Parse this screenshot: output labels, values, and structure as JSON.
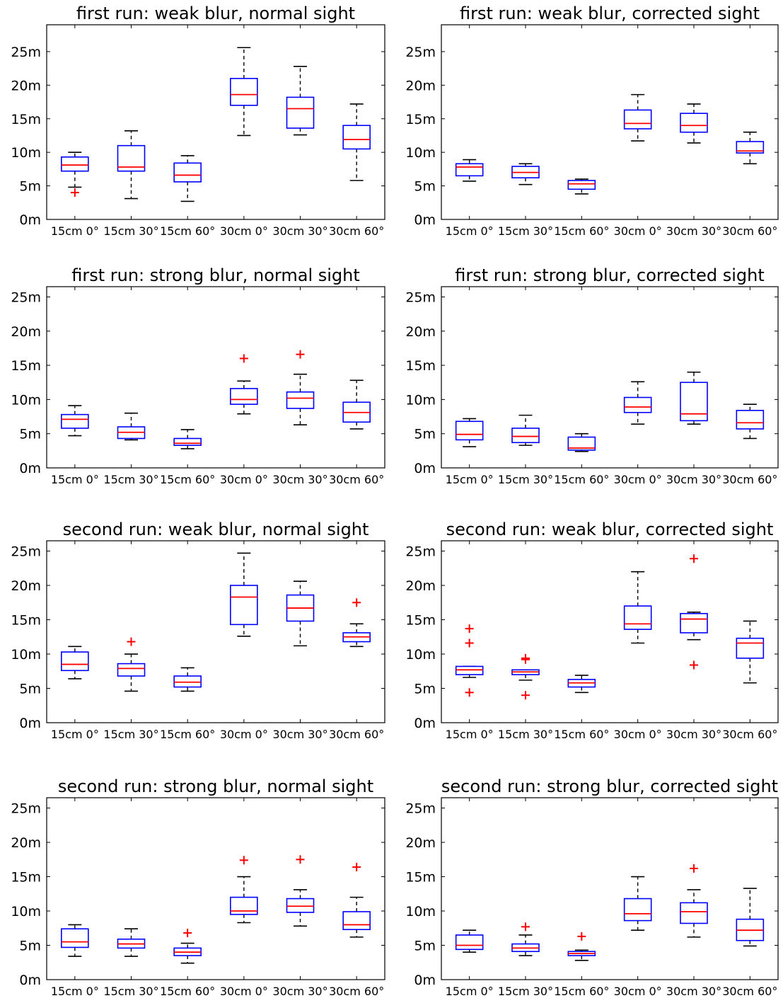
{
  "colors": {
    "box": "#0000ff",
    "median": "#ff0000",
    "outlier": "#ff0000",
    "whisker": "#000000",
    "axes": "#000000",
    "background": "#ffffff"
  },
  "chart_data": [
    {
      "type": "box",
      "title": "first run: weak blur, normal sight",
      "categories": [
        "15cm 0°",
        "15cm 30°",
        "15cm 60°",
        "30cm 0°",
        "30cm 30°",
        "30cm 60°"
      ],
      "ylim": [
        0,
        29
      ],
      "yticks": [
        0,
        5,
        10,
        15,
        20,
        25
      ],
      "ytick_labels": [
        "0m",
        "5m",
        "10m",
        "15m",
        "20m",
        "25m"
      ],
      "grid": false,
      "boxes": [
        {
          "whislo": 4.8,
          "q1": 7.2,
          "med": 8.1,
          "q3": 9.3,
          "whishi": 10.0,
          "fliers": [
            4.0
          ]
        },
        {
          "whislo": 3.1,
          "q1": 7.2,
          "med": 7.8,
          "q3": 11.0,
          "whishi": 13.2,
          "fliers": []
        },
        {
          "whislo": 2.7,
          "q1": 5.6,
          "med": 6.6,
          "q3": 8.4,
          "whishi": 9.5,
          "fliers": []
        },
        {
          "whislo": 12.5,
          "q1": 17.0,
          "med": 18.6,
          "q3": 21.0,
          "whishi": 25.6,
          "fliers": []
        },
        {
          "whislo": 12.6,
          "q1": 13.6,
          "med": 16.5,
          "q3": 18.2,
          "whishi": 22.8,
          "fliers": []
        },
        {
          "whislo": 5.8,
          "q1": 10.5,
          "med": 11.9,
          "q3": 14.0,
          "whishi": 17.2,
          "fliers": []
        }
      ]
    },
    {
      "type": "box",
      "title": "first run: weak blur, corrected sight",
      "categories": [
        "15cm 0°",
        "15cm 30°",
        "15cm 60°",
        "30cm 0°",
        "30cm 30°",
        "30cm 60°"
      ],
      "ylim": [
        0,
        29
      ],
      "yticks": [
        0,
        5,
        10,
        15,
        20,
        25
      ],
      "ytick_labels": [
        "0m",
        "5m",
        "10m",
        "15m",
        "20m",
        "25m"
      ],
      "grid": false,
      "boxes": [
        {
          "whislo": 5.7,
          "q1": 6.5,
          "med": 7.8,
          "q3": 8.3,
          "whishi": 8.9,
          "fliers": []
        },
        {
          "whislo": 5.2,
          "q1": 6.2,
          "med": 7.0,
          "q3": 7.9,
          "whishi": 8.3,
          "fliers": []
        },
        {
          "whislo": 3.8,
          "q1": 4.5,
          "med": 5.3,
          "q3": 5.8,
          "whishi": 6.0,
          "fliers": []
        },
        {
          "whislo": 11.7,
          "q1": 13.5,
          "med": 14.3,
          "q3": 16.3,
          "whishi": 18.6,
          "fliers": []
        },
        {
          "whislo": 11.4,
          "q1": 13.0,
          "med": 14.0,
          "q3": 15.8,
          "whishi": 17.2,
          "fliers": []
        },
        {
          "whislo": 8.3,
          "q1": 9.9,
          "med": 10.2,
          "q3": 11.6,
          "whishi": 13.0,
          "fliers": []
        }
      ]
    },
    {
      "type": "box",
      "title": "first run: strong blur, normal sight",
      "categories": [
        "15cm 0°",
        "15cm 30°",
        "15cm 60°",
        "30cm 0°",
        "30cm 30°",
        "30cm 60°"
      ],
      "ylim": [
        0,
        26.5
      ],
      "yticks": [
        0,
        5,
        10,
        15,
        20,
        25
      ],
      "ytick_labels": [
        "0m",
        "5m",
        "10m",
        "15m",
        "20m",
        "25m"
      ],
      "grid": false,
      "boxes": [
        {
          "whislo": 4.7,
          "q1": 5.8,
          "med": 7.1,
          "q3": 7.8,
          "whishi": 9.1,
          "fliers": []
        },
        {
          "whislo": 4.1,
          "q1": 4.3,
          "med": 5.2,
          "q3": 6.0,
          "whishi": 8.0,
          "fliers": []
        },
        {
          "whislo": 2.8,
          "q1": 3.3,
          "med": 3.6,
          "q3": 4.3,
          "whishi": 5.6,
          "fliers": []
        },
        {
          "whislo": 7.9,
          "q1": 9.3,
          "med": 10.0,
          "q3": 11.6,
          "whishi": 12.7,
          "fliers": [
            16.0
          ]
        },
        {
          "whislo": 6.3,
          "q1": 8.7,
          "med": 10.2,
          "q3": 11.1,
          "whishi": 13.7,
          "fliers": [
            16.6
          ]
        },
        {
          "whislo": 5.7,
          "q1": 6.7,
          "med": 8.1,
          "q3": 9.6,
          "whishi": 12.8,
          "fliers": []
        }
      ]
    },
    {
      "type": "box",
      "title": "first run: strong blur, corrected sight",
      "categories": [
        "15cm 0°",
        "15cm 30°",
        "15cm 60°",
        "30cm 0°",
        "30cm 30°",
        "30cm 60°"
      ],
      "ylim": [
        0,
        26.5
      ],
      "yticks": [
        0,
        5,
        10,
        15,
        20,
        25
      ],
      "ytick_labels": [
        "0m",
        "5m",
        "10m",
        "15m",
        "20m",
        "25m"
      ],
      "grid": false,
      "boxes": [
        {
          "whislo": 3.1,
          "q1": 4.1,
          "med": 4.9,
          "q3": 6.8,
          "whishi": 7.2,
          "fliers": []
        },
        {
          "whislo": 3.3,
          "q1": 3.7,
          "med": 4.6,
          "q3": 5.8,
          "whishi": 7.7,
          "fliers": []
        },
        {
          "whislo": 2.4,
          "q1": 2.6,
          "med": 2.9,
          "q3": 4.5,
          "whishi": 5.0,
          "fliers": []
        },
        {
          "whislo": 6.4,
          "q1": 8.1,
          "med": 8.9,
          "q3": 10.3,
          "whishi": 12.6,
          "fliers": []
        },
        {
          "whislo": 6.4,
          "q1": 6.9,
          "med": 7.9,
          "q3": 12.5,
          "whishi": 14.0,
          "fliers": []
        },
        {
          "whislo": 4.3,
          "q1": 5.7,
          "med": 6.6,
          "q3": 8.4,
          "whishi": 9.3,
          "fliers": []
        }
      ]
    },
    {
      "type": "box",
      "title": "second run: weak blur, normal sight",
      "categories": [
        "15cm 0°",
        "15cm 30°",
        "15cm 60°",
        "30cm 0°",
        "30cm 30°",
        "30cm 60°"
      ],
      "ylim": [
        0,
        26.5
      ],
      "yticks": [
        0,
        5,
        10,
        15,
        20,
        25
      ],
      "ytick_labels": [
        "0m",
        "5m",
        "10m",
        "15m",
        "20m",
        "25m"
      ],
      "grid": false,
      "boxes": [
        {
          "whislo": 6.4,
          "q1": 7.6,
          "med": 8.5,
          "q3": 10.3,
          "whishi": 11.1,
          "fliers": []
        },
        {
          "whislo": 4.6,
          "q1": 6.8,
          "med": 7.9,
          "q3": 8.6,
          "whishi": 10.0,
          "fliers": [
            11.8
          ]
        },
        {
          "whislo": 4.6,
          "q1": 5.2,
          "med": 5.9,
          "q3": 6.8,
          "whishi": 8.0,
          "fliers": []
        },
        {
          "whislo": 12.6,
          "q1": 14.3,
          "med": 18.3,
          "q3": 20.0,
          "whishi": 24.7,
          "fliers": []
        },
        {
          "whislo": 11.2,
          "q1": 14.8,
          "med": 16.7,
          "q3": 18.6,
          "whishi": 20.6,
          "fliers": []
        },
        {
          "whislo": 11.1,
          "q1": 11.8,
          "med": 12.5,
          "q3": 13.1,
          "whishi": 14.4,
          "fliers": [
            17.5
          ]
        }
      ]
    },
    {
      "type": "box",
      "title": "second run:  weak blur, corrected sight",
      "categories": [
        "15cm 0°",
        "15cm 30°",
        "15cm 60°",
        "30cm 0°",
        "30cm 30°",
        "30cm 60°"
      ],
      "ylim": [
        0,
        26.5
      ],
      "yticks": [
        0,
        5,
        10,
        15,
        20,
        25
      ],
      "ytick_labels": [
        "0m",
        "5m",
        "10m",
        "15m",
        "20m",
        "25m"
      ],
      "grid": false,
      "boxes": [
        {
          "whislo": 6.6,
          "q1": 7.0,
          "med": 7.7,
          "q3": 8.2,
          "whishi": 8.2,
          "fliers": [
            4.4,
            11.6,
            13.7
          ]
        },
        {
          "whislo": 6.2,
          "q1": 7.0,
          "med": 7.4,
          "q3": 7.7,
          "whishi": 7.7,
          "fliers": [
            4.0,
            9.2,
            9.4
          ]
        },
        {
          "whislo": 4.4,
          "q1": 5.2,
          "med": 5.8,
          "q3": 6.3,
          "whishi": 6.9,
          "fliers": []
        },
        {
          "whislo": 11.6,
          "q1": 13.6,
          "med": 14.4,
          "q3": 17.0,
          "whishi": 22.0,
          "fliers": []
        },
        {
          "whislo": 12.1,
          "q1": 13.1,
          "med": 15.1,
          "q3": 15.9,
          "whishi": 16.1,
          "fliers": [
            8.4,
            23.9
          ]
        },
        {
          "whislo": 5.8,
          "q1": 9.4,
          "med": 11.6,
          "q3": 12.3,
          "whishi": 14.8,
          "fliers": []
        }
      ]
    },
    {
      "type": "box",
      "title": "second run: strong blur, normal sight",
      "categories": [
        "15cm 0°",
        "15cm 30°",
        "15cm 60°",
        "30cm 0°",
        "30cm 30°",
        "30cm 60°"
      ],
      "ylim": [
        0,
        26.5
      ],
      "yticks": [
        0,
        5,
        10,
        15,
        20,
        25
      ],
      "ytick_labels": [
        "0m",
        "5m",
        "10m",
        "15m",
        "20m",
        "25m"
      ],
      "grid": false,
      "boxes": [
        {
          "whislo": 3.4,
          "q1": 4.7,
          "med": 5.5,
          "q3": 7.4,
          "whishi": 8.0,
          "fliers": []
        },
        {
          "whislo": 3.4,
          "q1": 4.6,
          "med": 5.2,
          "q3": 5.9,
          "whishi": 7.4,
          "fliers": []
        },
        {
          "whislo": 2.4,
          "q1": 3.5,
          "med": 4.0,
          "q3": 4.6,
          "whishi": 5.3,
          "fliers": [
            6.8
          ]
        },
        {
          "whislo": 8.3,
          "q1": 9.5,
          "med": 10.0,
          "q3": 12.0,
          "whishi": 15.0,
          "fliers": [
            17.4
          ]
        },
        {
          "whislo": 7.8,
          "q1": 9.8,
          "med": 10.7,
          "q3": 11.8,
          "whishi": 13.1,
          "fliers": [
            17.5
          ]
        },
        {
          "whislo": 6.2,
          "q1": 7.3,
          "med": 8.0,
          "q3": 9.9,
          "whishi": 12.0,
          "fliers": [
            16.4
          ]
        }
      ]
    },
    {
      "type": "box",
      "title": "second run: strong blur, corrected sight",
      "categories": [
        "15cm 0°",
        "15cm 30°",
        "15cm 60°",
        "30cm 0°",
        "30cm 30°",
        "30cm 60°"
      ],
      "ylim": [
        0,
        26.5
      ],
      "yticks": [
        0,
        5,
        10,
        15,
        20,
        25
      ],
      "ytick_labels": [
        "0m",
        "5m",
        "10m",
        "15m",
        "20m",
        "25m"
      ],
      "grid": false,
      "boxes": [
        {
          "whislo": 4.0,
          "q1": 4.4,
          "med": 5.0,
          "q3": 6.5,
          "whishi": 7.2,
          "fliers": []
        },
        {
          "whislo": 3.5,
          "q1": 4.1,
          "med": 4.6,
          "q3": 5.2,
          "whishi": 6.5,
          "fliers": [
            7.7
          ]
        },
        {
          "whislo": 2.8,
          "q1": 3.5,
          "med": 3.8,
          "q3": 4.1,
          "whishi": 4.3,
          "fliers": [
            6.3
          ]
        },
        {
          "whislo": 7.2,
          "q1": 8.6,
          "med": 9.6,
          "q3": 11.8,
          "whishi": 15.0,
          "fliers": []
        },
        {
          "whislo": 6.2,
          "q1": 8.2,
          "med": 9.9,
          "q3": 11.2,
          "whishi": 13.1,
          "fliers": [
            16.2
          ]
        },
        {
          "whislo": 4.9,
          "q1": 5.7,
          "med": 7.2,
          "q3": 8.8,
          "whishi": 13.3,
          "fliers": []
        }
      ]
    }
  ]
}
